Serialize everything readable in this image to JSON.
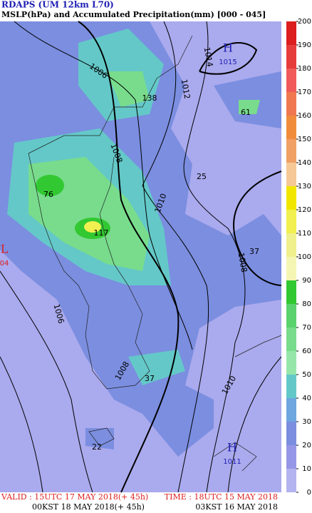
{
  "header": {
    "title": "RDAPS (UM 12km L70)",
    "subtitle": "MSLP(hPa) and  Accumulated Precipitation(mm) [000 - 045]"
  },
  "map": {
    "pressure_labels": [
      1006,
      1008,
      1010,
      1012,
      1014,
      1008,
      1010,
      1006,
      1008
    ],
    "precip_maxima": [
      138,
      61,
      25,
      76,
      117,
      37,
      37,
      22
    ],
    "centers": [
      {
        "symbol": "H",
        "value": 1015
      },
      {
        "symbol": "L",
        "value": "04"
      },
      {
        "symbol": "H",
        "value": 1011
      }
    ]
  },
  "colorbar": {
    "ticks": [
      0,
      10,
      20,
      30,
      40,
      50,
      60,
      70,
      80,
      90,
      100,
      110,
      120,
      130,
      140,
      150,
      160,
      170,
      180,
      190,
      200
    ],
    "colors": [
      "#b4b4f0",
      "#9696e6",
      "#7b8ee0",
      "#6ea6e0",
      "#64c8c8",
      "#96e6aa",
      "#78dc8c",
      "#5ad26e",
      "#32c832",
      "#f5f5b4",
      "#f0f08c",
      "#f0f050",
      "#f0e600",
      "#f5c896",
      "#f0a064",
      "#f08c3c",
      "#f07850",
      "#f05a5a",
      "#e63c3c",
      "#dc1e1e"
    ]
  },
  "footer": {
    "valid": "VALID : 15UTC 17 MAY 2018(+ 45h)",
    "valid_kst": "00KST 18 MAY 2018(+ 45h)",
    "time": "TIME : 18UTC 15 MAY 2018",
    "time_kst": "03KST 16 MAY 2018"
  }
}
